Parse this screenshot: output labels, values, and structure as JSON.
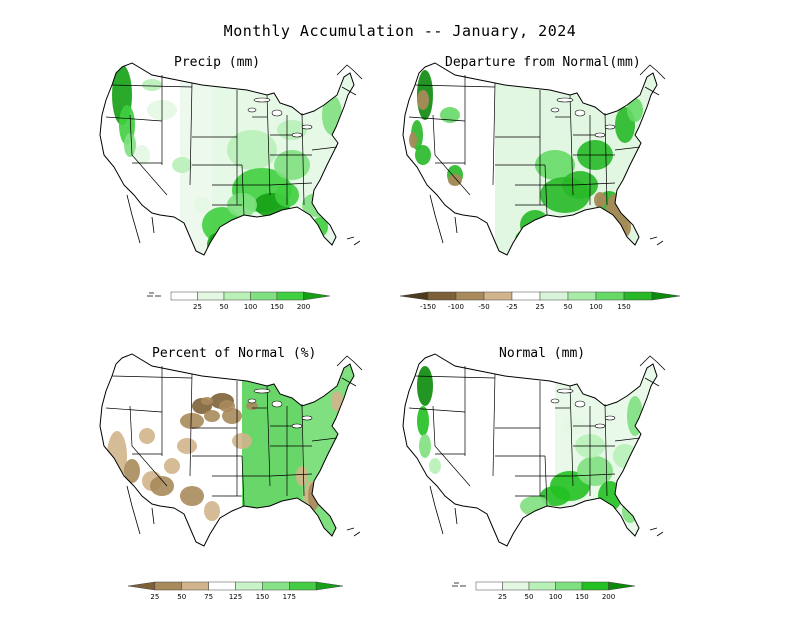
{
  "title": "Monthly Accumulation -- January, 2024",
  "panels": [
    {
      "title": "Precip (mm)",
      "legend": {
        "lead": "dashed-small",
        "colors": [
          "#ffffff",
          "#e3f7e3",
          "#b8f0b8",
          "#7fe07f",
          "#3fcf3f",
          "#14a014"
        ],
        "labels": [
          "25",
          "50",
          "100",
          "150",
          "200"
        ]
      }
    },
    {
      "title": "Departure from Normal(mm)",
      "legend": {
        "colors": [
          "#4d3b1e",
          "#7d6037",
          "#a88a5b",
          "#d2b48c",
          "#ffffff",
          "#d9f5d9",
          "#a6eca6",
          "#66d966",
          "#28b828",
          "#0c8a0c"
        ],
        "labels": [
          "-150",
          "-100",
          "-50",
          "-25",
          "25",
          "50",
          "100",
          "150"
        ]
      }
    },
    {
      "title": "Percent of Normal (%)",
      "legend": {
        "colors": [
          "#7d6037",
          "#a88a5b",
          "#d2b48c",
          "#ffffff",
          "#c8f2c8",
          "#86e286",
          "#44cc44",
          "#15a015"
        ],
        "labels": [
          "25",
          "50",
          "75",
          "125",
          "150",
          "175"
        ]
      }
    },
    {
      "title": "Normal (mm)",
      "legend": {
        "lead": "dashed-small",
        "colors": [
          "#ffffff",
          "#e3f7e3",
          "#b8f0b8",
          "#7fe07f",
          "#22c022",
          "#0a8a0a"
        ],
        "labels": [
          "25",
          "50",
          "100",
          "150",
          "200"
        ]
      }
    }
  ]
}
